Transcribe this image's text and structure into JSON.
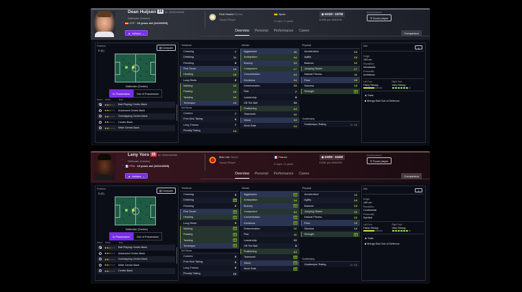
{
  "players": [
    {
      "name": "Dean Huijsen",
      "shirt_number": "24",
      "player_id": "ID: 2000109040",
      "position": "Defender (Centre)",
      "nationality_code": "ESP",
      "flag": "esp",
      "age_dob": "20 years old (14/4/2005)",
      "actions_label": "Actions",
      "club": "Real Madrid",
      "club_sub": "Senior",
      "squad_status": "Squad Player",
      "nation": "Spain",
      "caps_goals": "4 caps / 0 goals",
      "value_range": "£61M - £97M",
      "wage": "£190K p/w  30/6/2030",
      "scouting_report_label": "Scouting Report",
      "scout_button": "Scout player",
      "tabs": [
        "Overview",
        "Personal",
        "Performance",
        "Career"
      ],
      "active_tab": "Overview",
      "comparison_label": "Comparison",
      "positions_label": "Positions",
      "positions_value": "D (C)",
      "compare_label": "Compare",
      "position_name": "Defender (Centre)",
      "in_possession": "In Possession",
      "out_of_possession": "Out of Possession",
      "roles_headers": [
        "Select",
        "Ability",
        "Role"
      ],
      "roles": [
        {
          "name": "Ball-Playing Centre-Back",
          "stars": 2.5,
          "selected": true
        },
        {
          "name": "Advanced Centre-Back",
          "stars": 2.5,
          "selected": false
        },
        {
          "name": "Overlapping Centre-Back",
          "stars": 2,
          "selected": false
        },
        {
          "name": "Centre-Back",
          "stars": 2,
          "selected": false
        },
        {
          "name": "Wide Centre-Back",
          "stars": 2,
          "selected": false
        }
      ],
      "technical_label": "Technical",
      "technical": [
        {
          "name": "Crossing",
          "value": "7",
          "c": "w",
          "hl": ""
        },
        {
          "name": "Dribbling",
          "value": "11",
          "c": "y",
          "hl": ""
        },
        {
          "name": "Finishing",
          "value": "8",
          "c": "w",
          "hl": ""
        },
        {
          "name": "First Touch",
          "value": "13",
          "c": "y",
          "hl": "b"
        },
        {
          "name": "Heading",
          "value": "15",
          "c": "y",
          "hl": "g"
        },
        {
          "name": "Long Shots",
          "value": "8",
          "c": "w",
          "hl": ""
        },
        {
          "name": "Marking",
          "value": "14",
          "c": "y",
          "hl": "g"
        },
        {
          "name": "Passing",
          "value": "15",
          "c": "y",
          "hl": "g"
        },
        {
          "name": "Tackling",
          "value": "14",
          "c": "y",
          "hl": "g"
        },
        {
          "name": "Technique",
          "value": "14",
          "c": "y",
          "hl": "b"
        }
      ],
      "set_pieces_label": "Set Pieces",
      "set_pieces": [
        {
          "name": "Corners",
          "value": "7",
          "c": "w",
          "hl": ""
        },
        {
          "name": "Free Kick Taking",
          "value": "6",
          "c": "w",
          "hl": ""
        },
        {
          "name": "Long Throws",
          "value": "7",
          "c": "w",
          "hl": ""
        },
        {
          "name": "Penalty Taking",
          "value": "14",
          "c": "y",
          "hl": ""
        }
      ],
      "mental_label": "Mental",
      "mental": [
        {
          "name": "Aggression",
          "value": "11",
          "c": "y",
          "hl": "b"
        },
        {
          "name": "Anticipation",
          "value": "14",
          "c": "y",
          "hl": "g"
        },
        {
          "name": "Bravery",
          "value": "13",
          "c": "y",
          "hl": "b"
        },
        {
          "name": "Composure",
          "value": "17",
          "c": "g",
          "hl": "g"
        },
        {
          "name": "Concentration",
          "value": "14",
          "c": "y",
          "hl": "b"
        },
        {
          "name": "Decisions",
          "value": "14",
          "c": "y",
          "hl": "b"
        },
        {
          "name": "Determination",
          "value": "15",
          "c": "y",
          "hl": ""
        },
        {
          "name": "Flair",
          "value": "7",
          "c": "w",
          "hl": ""
        },
        {
          "name": "Leadership",
          "value": "8",
          "c": "w",
          "hl": ""
        },
        {
          "name": "Off The Ball",
          "value": "10",
          "c": "w",
          "hl": ""
        },
        {
          "name": "Positioning",
          "value": "14",
          "c": "y",
          "hl": "g"
        },
        {
          "name": "Teamwork",
          "value": "12",
          "c": "y",
          "hl": ""
        },
        {
          "name": "Vision",
          "value": "14",
          "c": "y",
          "hl": "b"
        },
        {
          "name": "Work Rate",
          "value": "14",
          "c": "y",
          "hl": ""
        }
      ],
      "physical_label": "Physical",
      "physical": [
        {
          "name": "Acceleration",
          "value": "13",
          "c": "y",
          "hl": ""
        },
        {
          "name": "Agility",
          "value": "13",
          "c": "y",
          "hl": ""
        },
        {
          "name": "Balance",
          "value": "12",
          "c": "y",
          "hl": ""
        },
        {
          "name": "Jumping Reach",
          "value": "17",
          "c": "g",
          "hl": "g"
        },
        {
          "name": "Natural Fitness",
          "value": "11",
          "c": "y",
          "hl": ""
        },
        {
          "name": "Pace",
          "value": "13",
          "c": "y",
          "hl": "b"
        },
        {
          "name": "Stamina",
          "value": "13",
          "c": "y",
          "hl": ""
        },
        {
          "name": "Strength",
          "value": "13",
          "c": "gb",
          "hl": "g"
        }
      ],
      "goalkeeping_label": "Goalkeeping",
      "goalkeeper_rating_label": "Goalkeeper Rating",
      "goalkeeper_rating": "3 / 10",
      "info_label": "Info",
      "height_label": "Height",
      "height": "195 cm",
      "reputation_label": "Reputation",
      "reputation": "Worldwide",
      "personality_label": "Personality",
      "personality": "Ambitious",
      "left_foot_label": "Left Foot",
      "left_foot": "Fairly Strong",
      "left_foot_level": 4,
      "right_foot_label": "Right Foot",
      "right_foot": "Very Strong",
      "right_foot_level": 6,
      "traits_label": "Traits",
      "traits": [
        "Brings Ball Out of Defence"
      ]
    },
    {
      "name": "Leny Yoro",
      "shirt_number": "15",
      "player_id": "ID: 2000169069",
      "position": "Defender (Centre)",
      "nationality_code": "FRA",
      "flag": "fra",
      "age_dob": "19 years old (13/11/2005)",
      "actions_label": "Actions",
      "club": "Man Utd",
      "club_sub": "Senior",
      "squad_status": "Squad Player",
      "nation": "France",
      "caps_goals": "0 caps / 0 goals",
      "value_range": "£60M - £64M",
      "wage": "£115K p/w  30/6/2029",
      "scouting_report_label": "Scouting Report",
      "scout_button": "Scout player",
      "tabs": [
        "Overview",
        "Personal",
        "Performance",
        "Career"
      ],
      "active_tab": "Overview",
      "comparison_label": "Comparison",
      "positions_label": "Positions",
      "positions_value": "D (C)",
      "compare_label": "Compare",
      "position_name": "Defender (Centre)",
      "in_possession": "In Possession",
      "out_of_possession": "Out of Possession",
      "roles_headers": [
        "Select",
        "Ability",
        "Role"
      ],
      "roles": [
        {
          "name": "Ball-Playing Centre-Back",
          "stars": 2.5,
          "selected": true
        },
        {
          "name": "Advanced Centre-Back",
          "stars": 2.5,
          "selected": false
        },
        {
          "name": "Overlapping Centre-Back",
          "stars": 2,
          "selected": false
        },
        {
          "name": "Wide Centre-Back",
          "stars": 2,
          "selected": false
        },
        {
          "name": "Centre-Back",
          "stars": 2,
          "selected": false
        }
      ],
      "technical_label": "Technical",
      "technical": [
        {
          "name": "Crossing",
          "value": "5",
          "c": "w",
          "hl": ""
        },
        {
          "name": "Dribbling",
          "value": "12",
          "c": "gb",
          "hl": ""
        },
        {
          "name": "Finishing",
          "value": "6",
          "c": "w",
          "hl": ""
        },
        {
          "name": "First Touch",
          "value": "14",
          "c": "gb",
          "hl": "b"
        },
        {
          "name": "Heading",
          "value": "15",
          "c": "gb",
          "hl": "g"
        },
        {
          "name": "Long Shots",
          "value": "9",
          "c": "w",
          "hl": ""
        },
        {
          "name": "Marking",
          "value": "13",
          "c": "gb",
          "hl": "g"
        },
        {
          "name": "Passing",
          "value": "13",
          "c": "gb",
          "hl": "g"
        },
        {
          "name": "Tackling",
          "value": "13",
          "c": "gb",
          "hl": "g"
        },
        {
          "name": "Technique",
          "value": "13",
          "c": "gb",
          "hl": "b"
        }
      ],
      "set_pieces_label": "Set Pieces",
      "set_pieces": [
        {
          "name": "Corners",
          "value": "5",
          "c": "w",
          "hl": ""
        },
        {
          "name": "Free Kick Taking",
          "value": "6",
          "c": "w",
          "hl": ""
        },
        {
          "name": "Long Throws",
          "value": "5",
          "c": "w",
          "hl": ""
        },
        {
          "name": "Penalty Taking",
          "value": "10",
          "c": "w",
          "hl": ""
        }
      ],
      "mental_label": "Mental",
      "mental": [
        {
          "name": "Aggression",
          "value": "13",
          "c": "gb",
          "hl": "b"
        },
        {
          "name": "Anticipation",
          "value": "14",
          "c": "y",
          "hl": "g"
        },
        {
          "name": "Bravery",
          "value": "13",
          "c": "gb",
          "hl": "b"
        },
        {
          "name": "Composure",
          "value": "14",
          "c": "y",
          "hl": "g"
        },
        {
          "name": "Concentration",
          "value": "13",
          "c": "gb",
          "hl": "b"
        },
        {
          "name": "Decisions",
          "value": "13",
          "c": "gb",
          "hl": "b"
        },
        {
          "name": "Determination",
          "value": "16",
          "c": "g",
          "hl": ""
        },
        {
          "name": "Flair",
          "value": "11",
          "c": "y",
          "hl": ""
        },
        {
          "name": "Leadership",
          "value": "10",
          "c": "w",
          "hl": ""
        },
        {
          "name": "Off The Ball",
          "value": "8",
          "c": "w",
          "hl": ""
        },
        {
          "name": "Positioning",
          "value": "14",
          "c": "y",
          "hl": "g"
        },
        {
          "name": "Teamwork",
          "value": "13",
          "c": "gb",
          "hl": ""
        },
        {
          "name": "Vision",
          "value": "12",
          "c": "gb",
          "hl": "b"
        },
        {
          "name": "Work Rate",
          "value": "13",
          "c": "gb",
          "hl": ""
        }
      ],
      "physical_label": "Physical",
      "physical": [
        {
          "name": "Acceleration",
          "value": "16",
          "c": "g",
          "hl": ""
        },
        {
          "name": "Agility",
          "value": "14",
          "c": "y",
          "hl": ""
        },
        {
          "name": "Balance",
          "value": "13",
          "c": "y",
          "hl": ""
        },
        {
          "name": "Jumping Reach",
          "value": "15",
          "c": "g",
          "hl": "g"
        },
        {
          "name": "Natural Fitness",
          "value": "12",
          "c": "y",
          "hl": ""
        },
        {
          "name": "Pace",
          "value": "15",
          "c": "g",
          "hl": "b"
        },
        {
          "name": "Stamina",
          "value": "14",
          "c": "y",
          "hl": ""
        },
        {
          "name": "Strength",
          "value": "13",
          "c": "gb",
          "hl": "g"
        }
      ],
      "goalkeeping_label": "Goalkeeping",
      "goalkeeper_rating_label": "Goalkeeper Rating",
      "goalkeeper_rating": "2 / 10",
      "info_label": "Info",
      "height_label": "Height",
      "height": "190 cm",
      "reputation_label": "Reputation",
      "reputation": "Continental",
      "personality_label": "Personality",
      "personality": "Spirited",
      "left_foot_label": "Left Foot",
      "left_foot": "Fairly Strong",
      "left_foot_level": 4,
      "right_foot_label": "Right Foot",
      "right_foot": "Very Strong",
      "right_foot_level": 6,
      "traits_label": "Traits",
      "traits": [
        "Brings Ball Out of Defence"
      ]
    }
  ]
}
